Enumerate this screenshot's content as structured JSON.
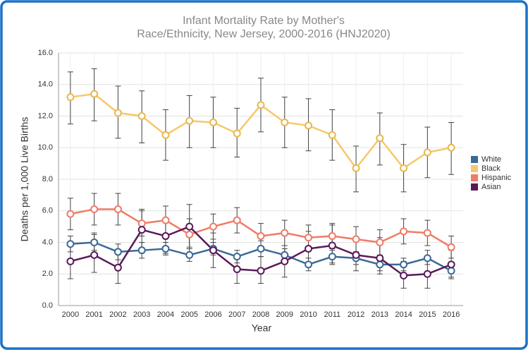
{
  "chart_data": {
    "type": "line",
    "title": [
      "Infant Mortality Rate by Mother's",
      "Race/Ethnicity, New Jersey, 2000-2016 (HNJ2020)"
    ],
    "x_label": "Year",
    "y_label": "Deaths per 1,000 Live Births",
    "categories": [
      "2000",
      "2001",
      "2002",
      "2003",
      "2004",
      "2005",
      "2006",
      "2007",
      "2008",
      "2009",
      "2010",
      "2011",
      "2012",
      "2013",
      "2014",
      "2015",
      "2016"
    ],
    "ylim": [
      0,
      16
    ],
    "yticks": [
      {
        "value": 0,
        "label": "0.0"
      },
      {
        "value": 2,
        "label": "2.0"
      },
      {
        "value": 4,
        "label": "4.0"
      },
      {
        "value": 6,
        "label": "6.0"
      },
      {
        "value": 8,
        "label": "8.0"
      },
      {
        "value": 10,
        "label": "10.0"
      },
      {
        "value": 12,
        "label": "12.0"
      },
      {
        "value": 14,
        "label": "14.0"
      },
      {
        "value": 16,
        "label": "16.0"
      }
    ],
    "grid": true,
    "legend": "right",
    "series": [
      {
        "name": "White",
        "color": "#3b6a98",
        "values": [
          3.9,
          4.0,
          3.4,
          3.5,
          3.6,
          3.2,
          3.6,
          3.1,
          3.6,
          3.2,
          2.6,
          3.1,
          3.0,
          2.6,
          2.6,
          3.0,
          2.2
        ],
        "upper": [
          4.4,
          4.6,
          3.9,
          4.0,
          4.0,
          3.6,
          4.0,
          3.5,
          4.1,
          3.6,
          3.0,
          3.5,
          3.4,
          3.0,
          3.0,
          3.5,
          2.6
        ],
        "lower": [
          3.4,
          3.5,
          2.9,
          3.0,
          3.2,
          2.8,
          3.2,
          2.7,
          3.1,
          2.8,
          2.2,
          2.7,
          2.6,
          2.2,
          2.2,
          2.6,
          1.8
        ]
      },
      {
        "name": "Black",
        "color": "#f5c96a",
        "values": [
          13.2,
          13.4,
          12.2,
          12.0,
          10.8,
          11.7,
          11.6,
          10.9,
          12.7,
          11.6,
          11.4,
          10.8,
          8.7,
          10.6,
          8.7,
          9.7,
          10.0
        ],
        "upper": [
          14.8,
          15.0,
          13.9,
          13.6,
          12.4,
          13.3,
          13.2,
          12.5,
          14.4,
          13.2,
          13.1,
          12.4,
          10.1,
          12.2,
          10.2,
          11.3,
          11.6
        ],
        "lower": [
          11.5,
          11.7,
          10.6,
          10.3,
          9.2,
          10.0,
          10.0,
          9.4,
          11.0,
          10.0,
          9.8,
          9.2,
          7.2,
          8.9,
          7.2,
          8.1,
          8.3
        ]
      },
      {
        "name": "Hispanic",
        "color": "#f07b66",
        "values": [
          5.8,
          6.1,
          6.1,
          5.2,
          5.4,
          4.5,
          5.0,
          5.4,
          4.4,
          4.6,
          4.3,
          4.4,
          4.2,
          4.0,
          4.7,
          4.6,
          3.7
        ],
        "upper": [
          6.8,
          7.1,
          7.1,
          6.0,
          6.3,
          5.5,
          5.8,
          6.2,
          5.2,
          5.4,
          5.1,
          5.2,
          5.0,
          4.8,
          5.5,
          5.4,
          4.4
        ],
        "lower": [
          4.8,
          5.1,
          5.1,
          4.4,
          4.5,
          3.6,
          4.2,
          4.6,
          3.6,
          3.8,
          3.5,
          3.6,
          3.4,
          3.2,
          3.9,
          3.8,
          3.0
        ]
      },
      {
        "name": "Asian",
        "color": "#5a1a5a",
        "values": [
          2.8,
          3.2,
          2.4,
          4.8,
          4.4,
          5.0,
          3.5,
          2.3,
          2.2,
          2.8,
          3.6,
          3.8,
          3.2,
          3.0,
          1.9,
          2.0,
          2.6
        ],
        "upper": [
          3.8,
          4.5,
          3.5,
          6.1,
          5.5,
          6.4,
          4.6,
          3.2,
          3.1,
          3.8,
          4.7,
          5.1,
          4.2,
          4.3,
          2.8,
          2.9,
          3.5
        ],
        "lower": [
          1.7,
          2.1,
          1.4,
          3.6,
          3.3,
          3.7,
          2.4,
          1.4,
          1.4,
          1.8,
          2.5,
          2.6,
          2.2,
          2.0,
          1.1,
          1.1,
          1.7
        ]
      }
    ]
  }
}
